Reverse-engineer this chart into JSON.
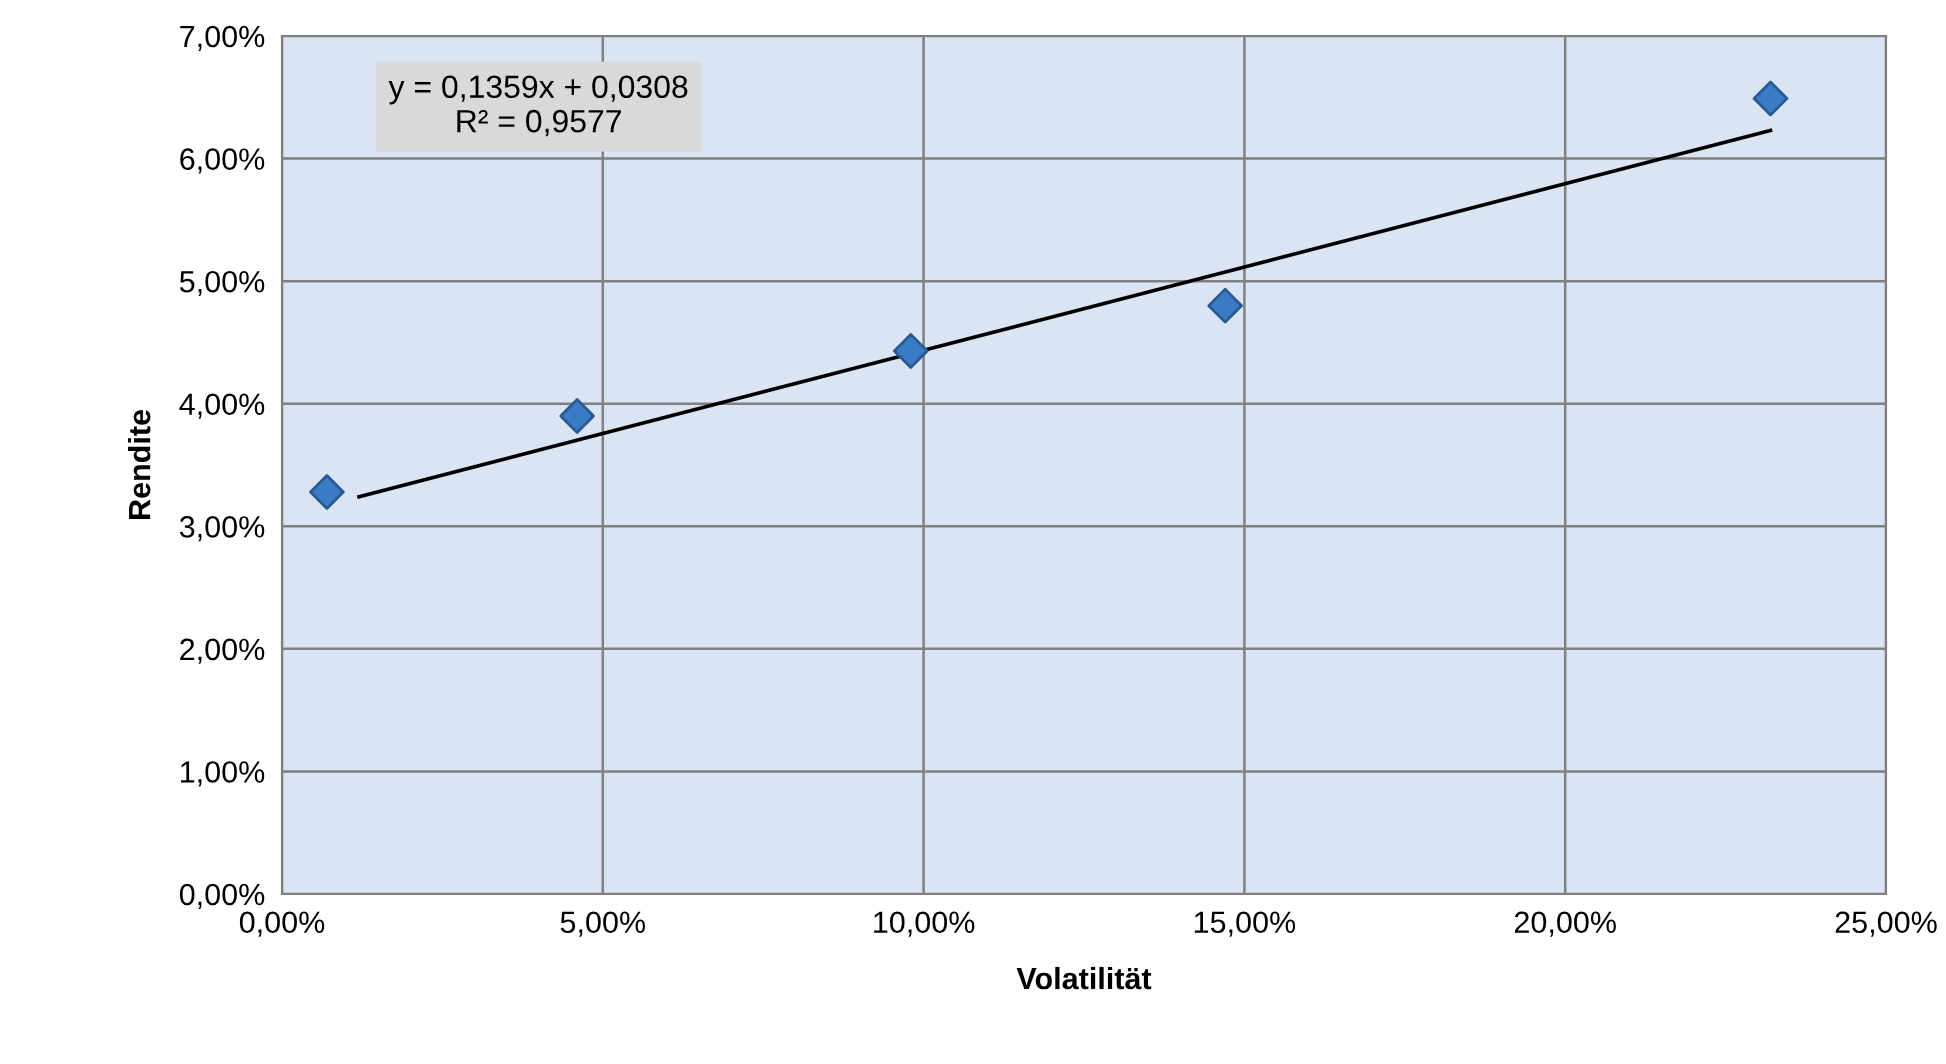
{
  "chart_data": {
    "type": "scatter",
    "xlabel": "Volatilität",
    "ylabel": "Rendite",
    "series": [
      {
        "color": "#3a7cc4",
        "marker": "diamond",
        "x": [
          0.7,
          4.6,
          9.8,
          14.7,
          23.2
        ],
        "values": [
          3.28,
          3.9,
          4.43,
          4.8,
          6.49
        ]
      },
      {
        "type": "line",
        "color": "#000000",
        "marker": "none",
        "line_style": "solid",
        "x": [
          1.2,
          23.2
        ],
        "values": [
          3.24,
          6.23
        ]
      }
    ],
    "annotations": [
      "y = 0,1359x + 0,0308\nR² = 0,9577"
    ],
    "xlim": [
      0,
      25
    ],
    "ylim": [
      0,
      7
    ],
    "xticks": [
      {
        "value": 0,
        "label": "0,00%"
      },
      {
        "value": 5,
        "label": "5,00%"
      },
      {
        "value": 10,
        "label": "10,00%"
      },
      {
        "value": 15,
        "label": "15,00%"
      },
      {
        "value": 20,
        "label": "20,00%"
      },
      {
        "value": 25,
        "label": "25,00%"
      }
    ],
    "yticks": [
      {
        "value": 0,
        "label": "0,00%"
      },
      {
        "value": 1,
        "label": "1,00%"
      },
      {
        "value": 2,
        "label": "2,00%"
      },
      {
        "value": 3,
        "label": "3,00%"
      },
      {
        "value": 4,
        "label": "4,00%"
      },
      {
        "value": 5,
        "label": "5,00%"
      },
      {
        "value": 6,
        "label": "6,00%"
      },
      {
        "value": 7,
        "label": "7,00%"
      }
    ],
    "grid": true,
    "legend": false
  }
}
